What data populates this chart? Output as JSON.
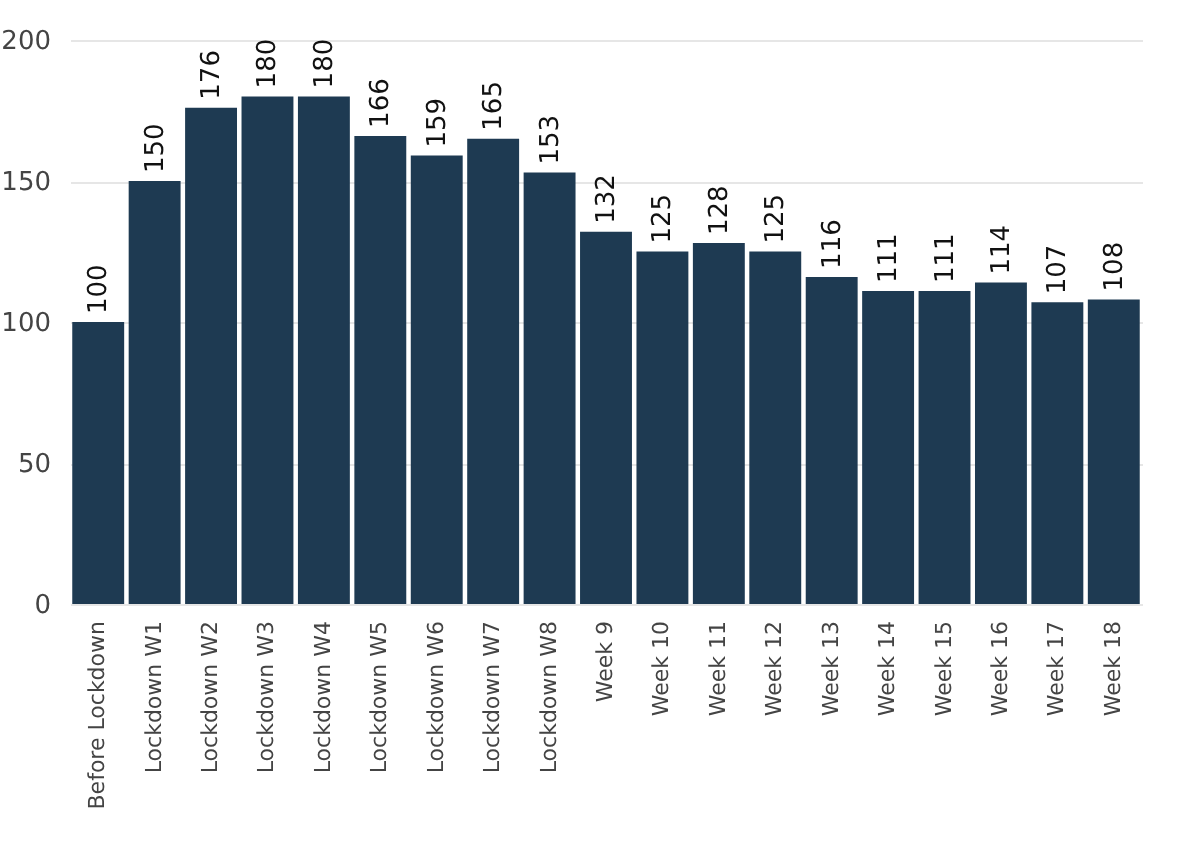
{
  "chart_data": {
    "type": "bar",
    "categories": [
      "Before Lockdown",
      "Lockdown W1",
      "Lockdown W2",
      "Lockdown W3",
      "Lockdown W4",
      "Lockdown W5",
      "Lockdown W6",
      "Lockdown W7",
      "Lockdown W8",
      "Week 9",
      "Week 10",
      "Week 11",
      "Week 12",
      "Week 13",
      "Week 14",
      "Week 15",
      "Week 16",
      "Week 17",
      "Week 18"
    ],
    "values": [
      100,
      150,
      176,
      180,
      180,
      166,
      159,
      165,
      153,
      132,
      125,
      128,
      125,
      116,
      111,
      111,
      114,
      107,
      108
    ],
    "color": "#1e3a52",
    "ylim": [
      0,
      200
    ],
    "yticks": [
      0,
      50,
      100,
      150,
      200
    ],
    "grid": "y",
    "data_labels": true
  }
}
